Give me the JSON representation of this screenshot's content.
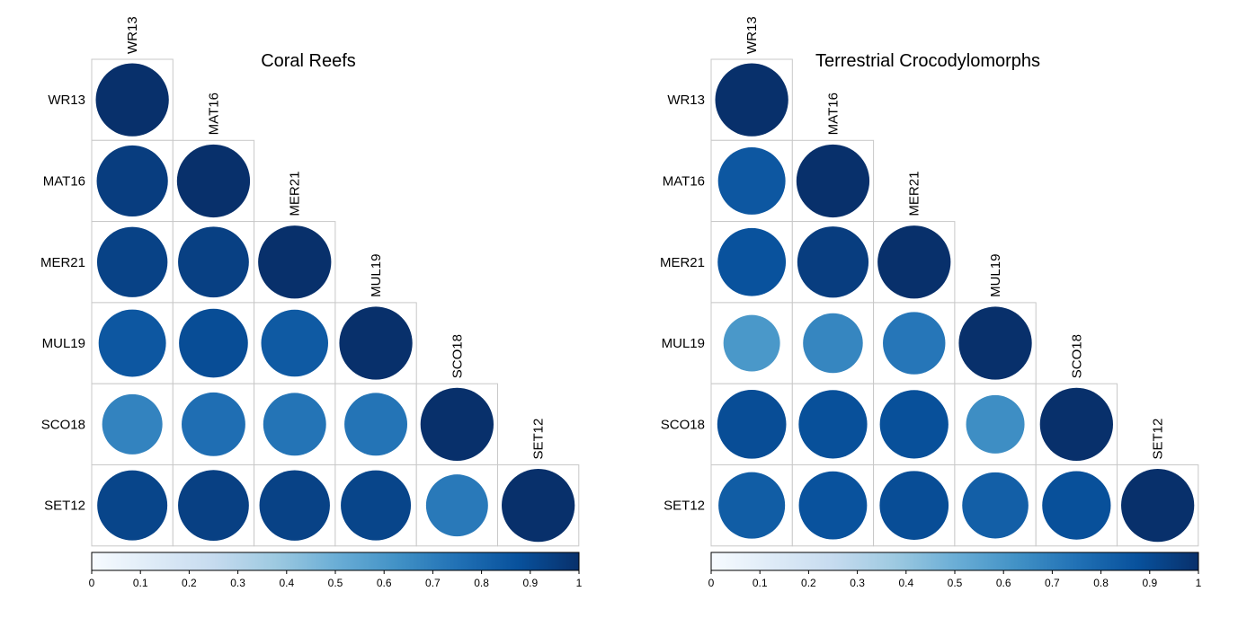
{
  "chart_data": [
    {
      "type": "heatmap",
      "title": "Coral Reefs",
      "labels": [
        "WR13",
        "MAT16",
        "MER21",
        "MUL19",
        "SCO18",
        "SET12"
      ],
      "matrix": [
        [
          1.0
        ],
        [
          0.95,
          1.0
        ],
        [
          0.93,
          0.94,
          1.0
        ],
        [
          0.85,
          0.89,
          0.84,
          1.0
        ],
        [
          0.68,
          0.76,
          0.74,
          0.74,
          1.0
        ],
        [
          0.92,
          0.94,
          0.93,
          0.92,
          0.72,
          1.0
        ]
      ],
      "colorbar": {
        "min": 0,
        "max": 1,
        "ticks": [
          "0",
          "0.1",
          "0.2",
          "0.3",
          "0.4",
          "0.5",
          "0.6",
          "0.7",
          "0.8",
          "0.9",
          "1"
        ],
        "colors": [
          "#f7fbff",
          "#deebf7",
          "#c6dbef",
          "#9ecae1",
          "#6baed6",
          "#4292c6",
          "#2171b5",
          "#08519c",
          "#08306b"
        ]
      },
      "shape": "lower-triangular circle correlation matrix",
      "grid": true,
      "legend": "bottom colorbar"
    },
    {
      "type": "heatmap",
      "title": "Terrestrial Crocodylomorphs",
      "labels": [
        "WR13",
        "MAT16",
        "MER21",
        "MUL19",
        "SCO18",
        "SET12"
      ],
      "matrix": [
        [
          1.0
        ],
        [
          0.85,
          1.0
        ],
        [
          0.87,
          0.95,
          1.0
        ],
        [
          0.6,
          0.67,
          0.73,
          1.0
        ],
        [
          0.89,
          0.88,
          0.88,
          0.64,
          1.0
        ],
        [
          0.83,
          0.87,
          0.89,
          0.82,
          0.88,
          1.0
        ]
      ],
      "colorbar": {
        "min": 0,
        "max": 1,
        "ticks": [
          "0",
          "0.1",
          "0.2",
          "0.3",
          "0.4",
          "0.5",
          "0.6",
          "0.7",
          "0.8",
          "0.9",
          "1"
        ],
        "colors": [
          "#f7fbff",
          "#deebf7",
          "#c6dbef",
          "#9ecae1",
          "#6baed6",
          "#4292c6",
          "#2171b5",
          "#08519c",
          "#08306b"
        ]
      },
      "shape": "lower-triangular circle correlation matrix",
      "grid": true,
      "legend": "bottom colorbar"
    }
  ]
}
